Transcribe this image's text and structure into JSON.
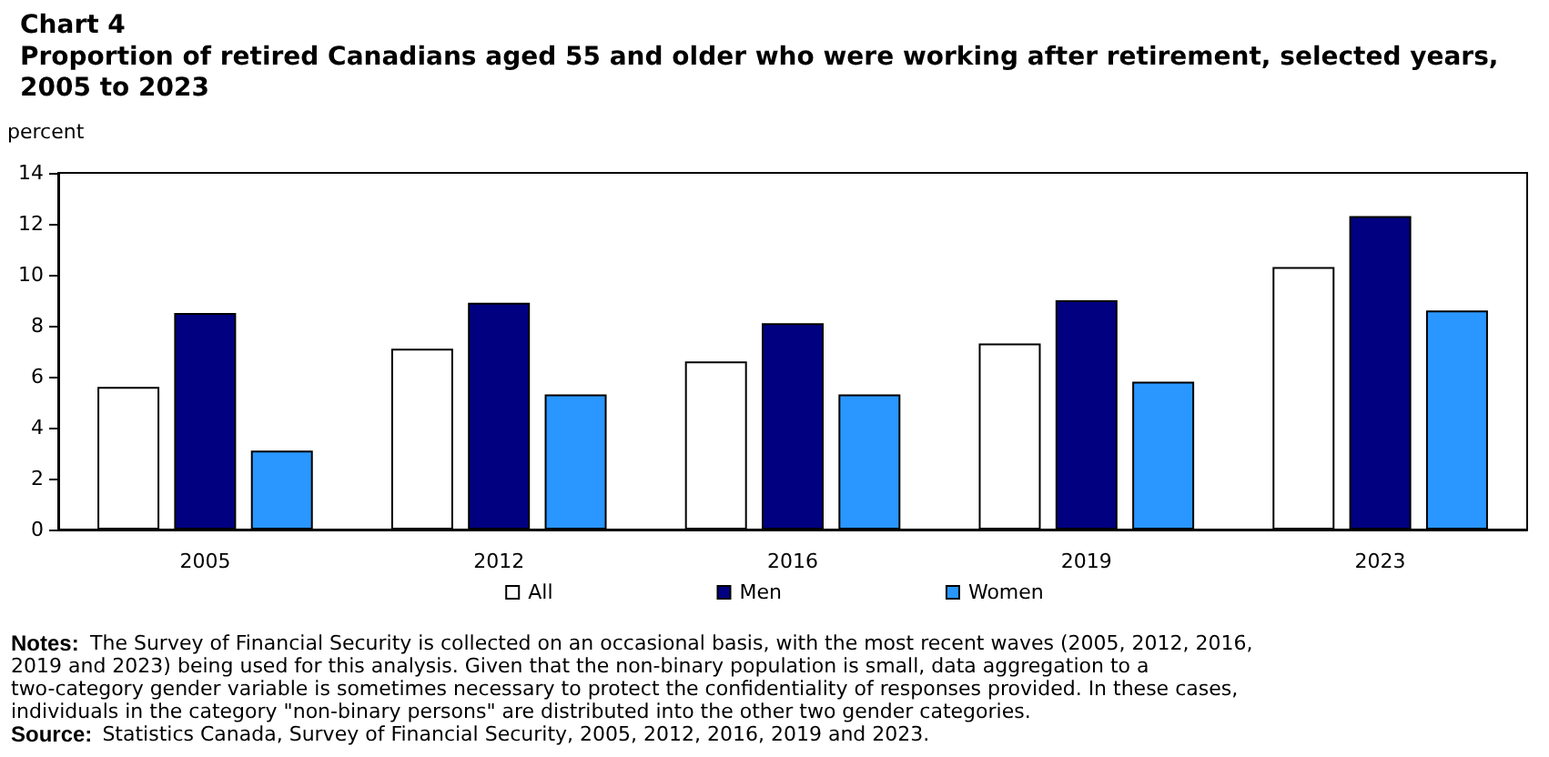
{
  "chart_data": {
    "type": "bar",
    "title": "Chart 4",
    "subtitle": "Proportion of retired Canadians aged 55 and older who were working after retirement, selected years, 2005 to 2023",
    "ylabel": "percent",
    "categories": [
      "2005",
      "2012",
      "2016",
      "2019",
      "2023"
    ],
    "series": [
      {
        "name": "All",
        "color": "#ffffff",
        "values": [
          5.6,
          7.1,
          6.6,
          7.3,
          10.3
        ]
      },
      {
        "name": "Men",
        "color": "#000080",
        "values": [
          8.5,
          8.9,
          8.1,
          9.0,
          12.3
        ]
      },
      {
        "name": "Women",
        "color": "#2997ff",
        "values": [
          3.1,
          5.3,
          5.3,
          5.8,
          8.6
        ]
      }
    ],
    "ylim": [
      0,
      14
    ],
    "yticks": [
      0,
      2,
      4,
      6,
      8,
      10,
      12,
      14
    ],
    "grid": false,
    "legend": "bottom",
    "annotations": [
      "Notes: The Survey of Financial Security is collected on an occasional basis, with the most recent waves (2005, 2012, 2016, 2019 and 2023) being used for this analysis. Given that the non-binary population is small, data aggregation to a two-category gender variable is sometimes necessary to protect the confidentiality of responses provided. In these cases, individuals in the category \"non-binary persons\" are distributed into the other two gender categories.",
      "Source: Statistics Canada, Survey of Financial Security, 2005, 2012, 2016, 2019 and 2023."
    ]
  }
}
